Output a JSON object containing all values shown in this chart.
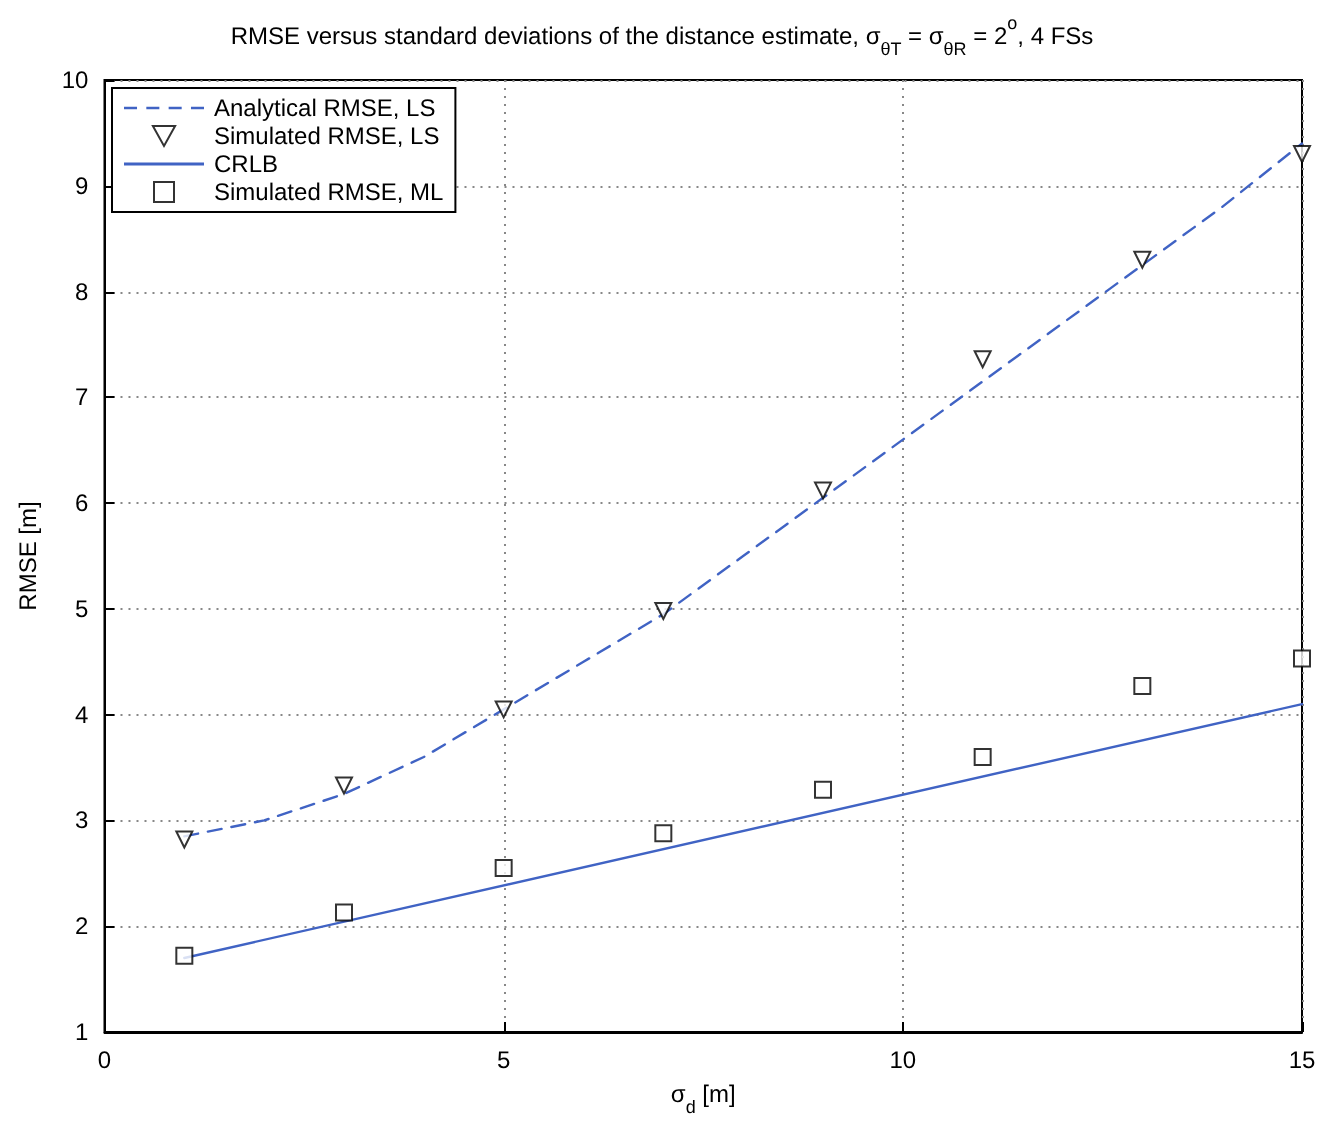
{
  "chart_data": {
    "type": "line",
    "title": "RMSE versus standard deviations of the distance estimate, σ$_{θT}$ = σ$_{θR}$ = 2$^{o}$, 4 FSs",
    "xlabel": "σ$_{d}$ [m]",
    "ylabel": "RMSE [m]",
    "xlim": [
      0,
      15
    ],
    "xticks": [
      0,
      5,
      10,
      15
    ],
    "ylim": [
      1,
      10
    ],
    "yticks": [
      1,
      2,
      3,
      4,
      5,
      6,
      7,
      8,
      9,
      10
    ],
    "grid": true,
    "legend": "top left",
    "series": [
      {
        "name": "Analytical RMSE, LS",
        "color": "#4063c4",
        "line_style": "dashed",
        "marker": "none",
        "x": [
          1,
          2,
          3,
          4,
          5,
          6,
          7,
          8,
          9,
          10,
          11,
          12,
          13,
          14,
          15
        ],
        "values": [
          2.85,
          3.0,
          3.25,
          3.6,
          4.05,
          4.5,
          4.95,
          5.5,
          6.05,
          6.6,
          7.15,
          7.7,
          8.25,
          8.8,
          9.4
        ]
      },
      {
        "name": "Simulated RMSE, LS",
        "type": "scatter",
        "color": "#000000",
        "marker": "triangle",
        "x": [
          1,
          3,
          5,
          7,
          9,
          11,
          13,
          15
        ],
        "values": [
          2.82,
          3.33,
          4.05,
          4.98,
          6.12,
          7.36,
          8.3,
          9.3
        ]
      },
      {
        "name": "CRLB",
        "color": "#4063c4",
        "line_style": "solid",
        "marker": "none",
        "x": [
          1,
          15
        ],
        "values": [
          1.7,
          4.1
        ]
      },
      {
        "name": "Simulated RMSE, ML",
        "type": "scatter",
        "color": "#000000",
        "marker": "square",
        "x": [
          1,
          3,
          5,
          7,
          9,
          11,
          13,
          15
        ],
        "values": [
          1.72,
          2.13,
          2.55,
          2.88,
          3.29,
          3.6,
          4.27,
          4.53
        ]
      }
    ]
  }
}
